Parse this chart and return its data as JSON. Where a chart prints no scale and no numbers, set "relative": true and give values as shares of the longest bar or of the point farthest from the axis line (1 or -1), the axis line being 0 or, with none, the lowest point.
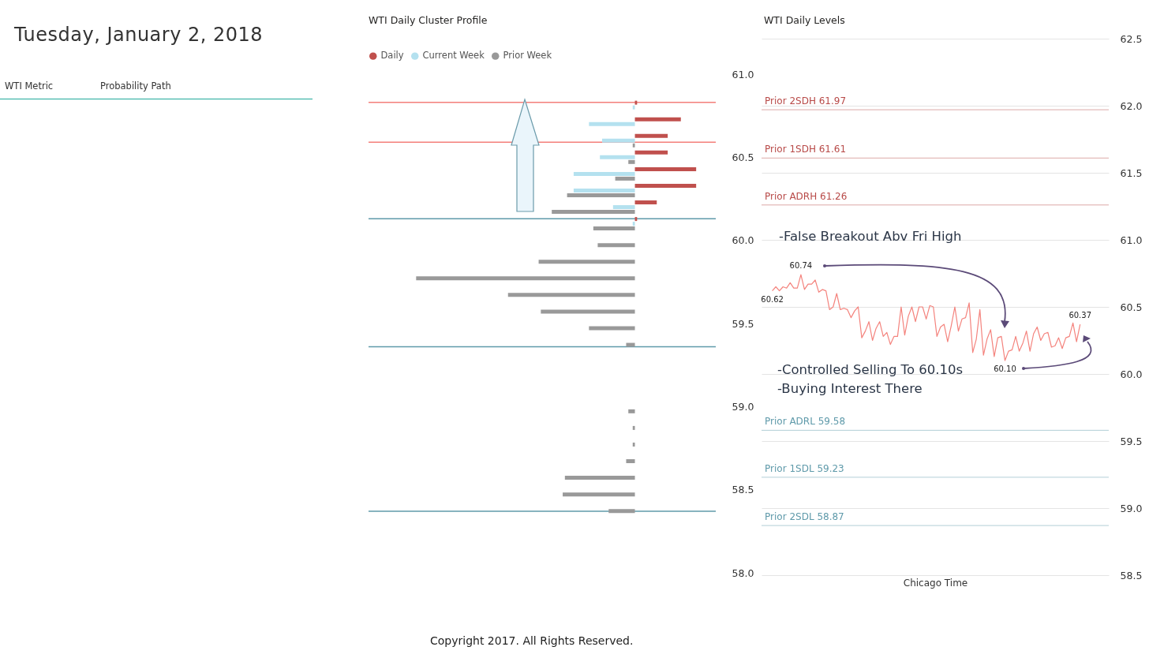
{
  "chart_data": [
    {
      "type": "other",
      "title": "Tuesday, January 2, 2018",
      "annotations": [
        "WTI Metric",
        "Probability Path"
      ]
    },
    {
      "type": "bar",
      "title": "WTI Daily Cluster Profile",
      "orientation": "horizontal",
      "relative": true,
      "legend": "top left",
      "x": [
        60.8,
        60.7,
        60.6,
        60.5,
        60.4,
        60.3,
        60.2,
        60.1,
        60.0,
        59.9,
        59.8,
        59.7,
        59.6,
        59.5,
        59.4,
        59.0,
        58.9,
        58.8,
        58.7,
        58.6,
        58.5,
        58.4
      ],
      "series": [
        {
          "name": "Daily",
          "color": "#c0504d",
          "values": [
            0.01,
            0.21,
            0.15,
            0.15,
            0.28,
            0.28,
            0.1,
            0.01,
            null,
            null,
            null,
            null,
            null,
            null,
            null,
            null,
            null,
            null,
            null,
            null,
            null,
            null
          ]
        },
        {
          "name": "Current Week",
          "color": "#b4e1ef",
          "values": [
            -0.01,
            -0.21,
            -0.15,
            -0.16,
            -0.28,
            -0.28,
            -0.1,
            -0.01,
            null,
            null,
            null,
            null,
            null,
            null,
            null,
            null,
            null,
            null,
            null,
            null,
            null,
            null
          ]
        },
        {
          "name": "Prior Week",
          "color": "#999999",
          "values": [
            null,
            null,
            -0.01,
            -0.03,
            -0.09,
            -0.31,
            -0.38,
            -0.19,
            -0.17,
            -0.44,
            -1,
            -0.58,
            -0.43,
            -0.21,
            -0.04,
            -0.03,
            -0.01,
            -0.01,
            -0.04,
            -0.32,
            -0.33,
            -0.12
          ]
        }
      ],
      "ylim": [
        58,
        61
      ],
      "yticks": [
        {
          "value": 58,
          "label": "58.0"
        },
        58.5,
        {
          "value": 59,
          "label": "59.0"
        },
        59.5,
        {
          "value": 60,
          "label": "60.0"
        },
        60.5,
        {
          "value": 61,
          "label": "61.0"
        }
      ],
      "ref_lines": [
        {
          "axis": "y",
          "value": 60.83,
          "color": "#f47f7a"
        },
        {
          "axis": "y",
          "value": 60.59,
          "color": "#f47f7a"
        },
        {
          "axis": "y",
          "value": 60.13,
          "color": "#5f9aaa"
        },
        {
          "axis": "y",
          "value": 59.36,
          "color": "#5f9aaa"
        },
        {
          "axis": "y",
          "value": 58.37,
          "color": "#5f9aaa"
        }
      ]
    },
    {
      "type": "line",
      "title": "WTI Daily Levels",
      "xlabel": "Chicago Time",
      "tick_labels": "y",
      "grid": "y",
      "categories": [
        null,
        null,
        null,
        null,
        null,
        null,
        null,
        null,
        null,
        null,
        null,
        null,
        null,
        null,
        null,
        null,
        null,
        null,
        null,
        null,
        null,
        null,
        null,
        null,
        null,
        null,
        null,
        null,
        null,
        null,
        null,
        null,
        null,
        null,
        null,
        null,
        null,
        null,
        null,
        null,
        null,
        null,
        null,
        null,
        null,
        null,
        null,
        null,
        null,
        null,
        null,
        null,
        null,
        null,
        null,
        null,
        null,
        null,
        null,
        null,
        null,
        null,
        null,
        null,
        null,
        null,
        null,
        null,
        null,
        null,
        null,
        null,
        null,
        null,
        null,
        null,
        null,
        null,
        null,
        null,
        null,
        null,
        null,
        null,
        null,
        null,
        null
      ],
      "series": [
        {
          "color": "#f4837d",
          "values": [
            60.62,
            60.65,
            60.62,
            60.65,
            60.64,
            60.68,
            60.64,
            60.64,
            60.74,
            60.63,
            60.67,
            60.67,
            60.7,
            60.61,
            60.63,
            60.62,
            60.48,
            60.5,
            60.6,
            60.48,
            60.49,
            60.48,
            60.42,
            60.47,
            60.5,
            60.27,
            60.32,
            60.39,
            60.25,
            60.34,
            60.39,
            60.28,
            60.31,
            60.22,
            60.28,
            60.28,
            60.5,
            60.29,
            60.43,
            60.5,
            60.39,
            60.5,
            60.5,
            60.41,
            60.51,
            60.5,
            60.28,
            60.35,
            60.37,
            60.24,
            60.36,
            60.5,
            60.32,
            60.41,
            60.42,
            60.53,
            60.16,
            60.26,
            60.48,
            60.14,
            60.26,
            60.33,
            60.13,
            60.27,
            60.28,
            60.1,
            60.17,
            60.18,
            60.28,
            60.17,
            60.23,
            60.32,
            60.17,
            60.3,
            60.35,
            60.25,
            60.3,
            60.31,
            60.2,
            60.21,
            60.27,
            60.19,
            60.27,
            60.28,
            60.38,
            60.24,
            60.37
          ],
          "value_labels": [
            "60.62",
            null,
            null,
            null,
            null,
            null,
            null,
            null,
            "60.74",
            null,
            null,
            null,
            null,
            null,
            null,
            null,
            null,
            null,
            null,
            null,
            null,
            null,
            null,
            null,
            null,
            null,
            null,
            null,
            null,
            null,
            null,
            null,
            null,
            null,
            null,
            null,
            null,
            null,
            null,
            null,
            null,
            null,
            null,
            null,
            null,
            null,
            null,
            null,
            null,
            null,
            null,
            null,
            null,
            null,
            null,
            null,
            null,
            null,
            null,
            null,
            null,
            null,
            null,
            null,
            null,
            "60.10",
            null,
            null,
            null,
            null,
            null,
            null,
            null,
            null,
            null,
            null,
            null,
            null,
            null,
            null,
            null,
            null,
            null,
            null,
            null,
            null,
            "60.37"
          ]
        }
      ],
      "ylim": [
        58.5,
        62.5
      ],
      "yticks": [
        58.5,
        {
          "value": 59,
          "label": "59.0"
        },
        59.5,
        {
          "value": 60,
          "label": "60.0"
        },
        60.5,
        {
          "value": 61,
          "label": "61.0"
        },
        61.5,
        {
          "value": 62,
          "label": "62.0"
        },
        62.5
      ],
      "ref_lines": [
        {
          "axis": "y",
          "value": 61.97,
          "label": "Prior 2SDH 61.97",
          "color": "#b84a48"
        },
        {
          "axis": "y",
          "value": 61.61,
          "label": "Prior 1SDH 61.61",
          "color": "#b84a48"
        },
        {
          "axis": "y",
          "value": 61.26,
          "label": "Prior ADRH 61.26",
          "color": "#b84a48"
        },
        {
          "axis": "y",
          "value": 59.58,
          "label": "Prior ADRL 59.58",
          "color": "#5f9aaa"
        },
        {
          "axis": "y",
          "value": 59.23,
          "label": "Prior 1SDL 59.23",
          "color": "#5f9aaa"
        },
        {
          "axis": "y",
          "value": 58.87,
          "label": "Prior 2SDL 58.87",
          "color": "#5f9aaa"
        }
      ],
      "annotations": [
        "-False Breakout Abv Fri High",
        "-Controlled Selling To 60.10s",
        "-Buying Interest There",
        "Copyright 2017. All Rights Reserved."
      ]
    }
  ]
}
